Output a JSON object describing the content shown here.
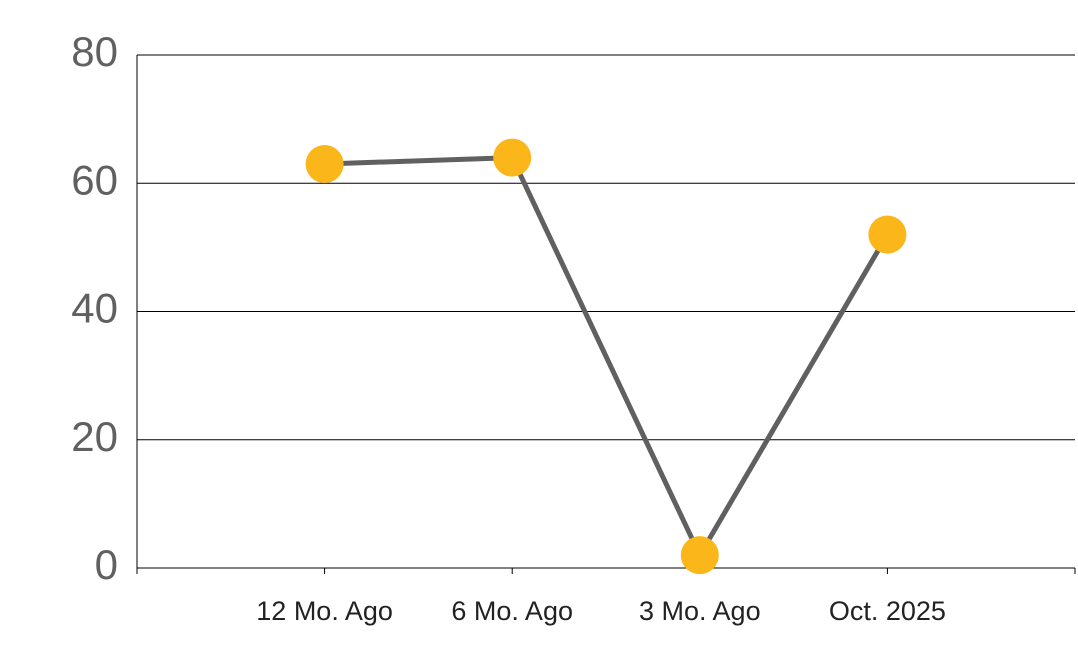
{
  "chart_data": {
    "type": "line",
    "categories": [
      "12 Mo. Ago",
      "6 Mo. Ago",
      "3 Mo. Ago",
      "Oct. 2025"
    ],
    "values": [
      63,
      64,
      2,
      52
    ],
    "color": "#606060",
    "marker_color": "#fbb619",
    "ylim": [
      0,
      80
    ],
    "yticks": [
      0,
      20,
      40,
      60,
      80
    ],
    "grid": true
  }
}
